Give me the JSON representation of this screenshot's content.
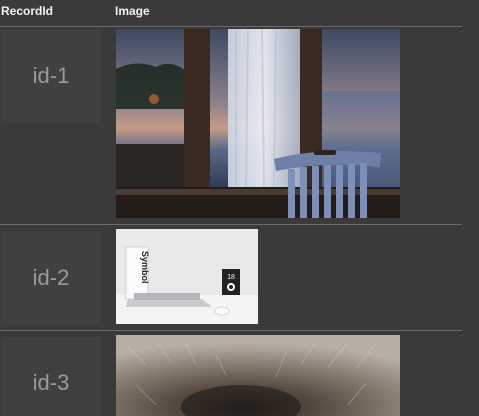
{
  "columns": {
    "record_id": "RecordId",
    "image": "Image"
  },
  "rows": [
    {
      "id": "id-1",
      "image": "window-chair-photo"
    },
    {
      "id": "id-2",
      "image": "desk-laptop-photo"
    },
    {
      "id": "id-3",
      "image": "animal-fur-photo"
    }
  ],
  "thumbs": {
    "desk_symbol_label": "Symbol",
    "desk_box_number": "18"
  }
}
